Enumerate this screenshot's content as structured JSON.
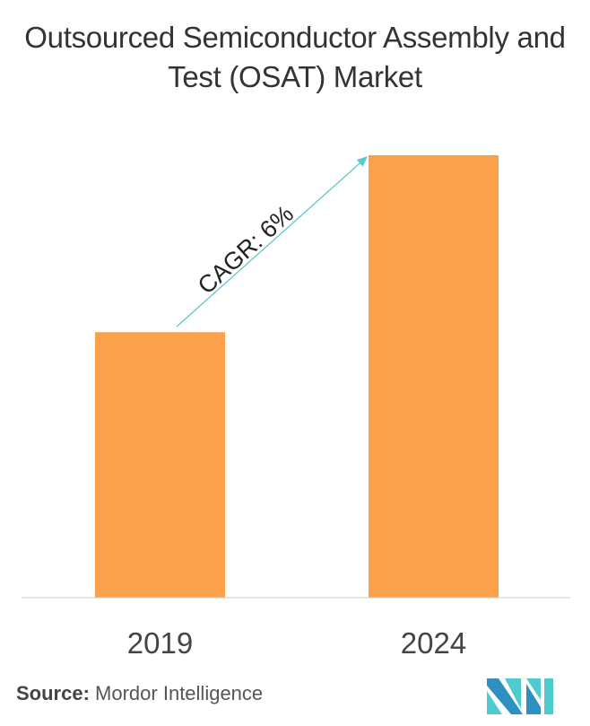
{
  "chart_data": {
    "type": "bar",
    "title": "Outsourced Semiconductor Assembly and Test (OSAT) Market",
    "categories": [
      "2019",
      "2024"
    ],
    "values": [
      0.6,
      1.0
    ],
    "value_note_relative": true,
    "bar_color": "#FBA04B",
    "grid": false,
    "annotation": {
      "text": "CAGR: 6%",
      "arrow_color": "#5BC8CC"
    }
  },
  "source": {
    "label": "Source:",
    "text": "Mordor Intelligence"
  },
  "logo": {
    "text": "Mordor Intelligence",
    "colors": [
      "#2E8FC1",
      "#4FCBD0"
    ]
  }
}
